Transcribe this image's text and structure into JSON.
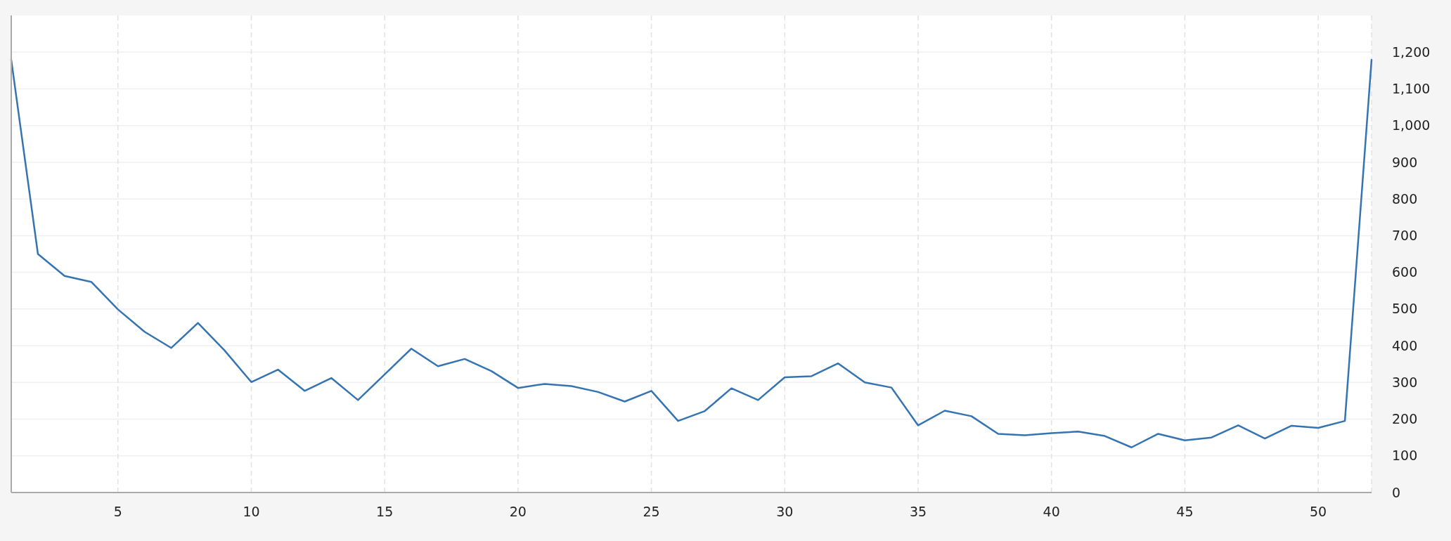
{
  "chart_data": {
    "type": "line",
    "x": [
      1,
      2,
      3,
      4,
      5,
      6,
      7,
      8,
      9,
      10,
      11,
      12,
      13,
      14,
      15,
      16,
      17,
      18,
      19,
      20,
      21,
      22,
      23,
      24,
      25,
      26,
      27,
      28,
      29,
      30,
      31,
      32,
      33,
      34,
      35,
      36,
      37,
      38,
      39,
      40,
      41,
      42,
      43,
      44,
      45,
      46,
      47,
      48,
      49,
      50,
      51,
      52
    ],
    "series": [
      {
        "color": "#3574b2",
        "values": [
          1179,
          650,
          590,
          574,
          499,
          438,
          394,
          462,
          387,
          301,
          335,
          277,
          312,
          252,
          322,
          392,
          344,
          364,
          331,
          285,
          296,
          290,
          274,
          248,
          277,
          195,
          222,
          284,
          252,
          314,
          317,
          352,
          300,
          286,
          183,
          223,
          208,
          160,
          156,
          162,
          166,
          154,
          123,
          160,
          142,
          150,
          183,
          147,
          182,
          176,
          195,
          1179
        ]
      }
    ],
    "xlim": [
      1,
      52
    ],
    "xticks": [
      5,
      10,
      15,
      20,
      25,
      30,
      35,
      40,
      45,
      50
    ],
    "ylim": [
      0,
      1300
    ],
    "yticks": [
      0,
      100,
      200,
      300,
      400,
      500,
      600,
      700,
      800,
      900,
      {
        "value": 1000,
        "label": "1,000"
      },
      {
        "value": 1100,
        "label": "1,100"
      },
      {
        "value": 1200,
        "label": "1,200"
      }
    ],
    "grid": true,
    "marker": "none",
    "line_style": "solid"
  }
}
